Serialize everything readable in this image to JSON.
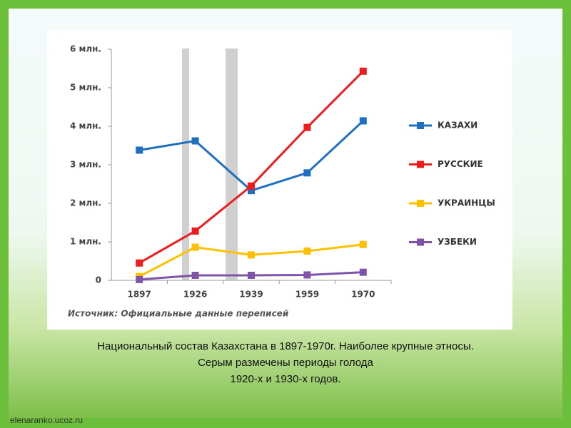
{
  "chart_data": {
    "type": "line",
    "categories": [
      "1897",
      "1926",
      "1939",
      "1959",
      "1970"
    ],
    "series": [
      {
        "name": "КАЗАХИ",
        "color": "#1f6fc0",
        "values": [
          3380000,
          3620000,
          2330000,
          2790000,
          4140000
        ]
      },
      {
        "name": "РУССКИЕ",
        "color": "#ee1c1c",
        "values": [
          450000,
          1280000,
          2450000,
          3970000,
          5430000
        ]
      },
      {
        "name": "УКРАИНЦЫ",
        "color": "#ffc000",
        "values": [
          100000,
          860000,
          660000,
          760000,
          930000
        ]
      },
      {
        "name": "УЗБЕКИ",
        "color": "#7f54a8",
        "values": [
          20000,
          130000,
          130000,
          140000,
          210000
        ]
      }
    ],
    "ylim": [
      0,
      6000000
    ],
    "yticks": [
      0,
      {
        "value": 1000000,
        "label": "1 млн."
      },
      {
        "value": 2000000,
        "label": "2 млн."
      },
      {
        "value": 3000000,
        "label": "3 млн."
      },
      {
        "value": 4000000,
        "label": "4 млн."
      },
      {
        "value": 5000000,
        "label": "5 млн."
      },
      {
        "value": 6000000,
        "label": "6 млн."
      }
    ],
    "grid": false,
    "legend": "right",
    "source": "Источник: Официальные данные переписей"
  },
  "caption": [
    "Национальный состав Казахстана в 1897-1970г. Наиболее крупные этносы.",
    "Серым размечены периоды голода",
    "1920-х и 1930-х годов."
  ],
  "watermark": "elenaranko.ucoz.ru"
}
